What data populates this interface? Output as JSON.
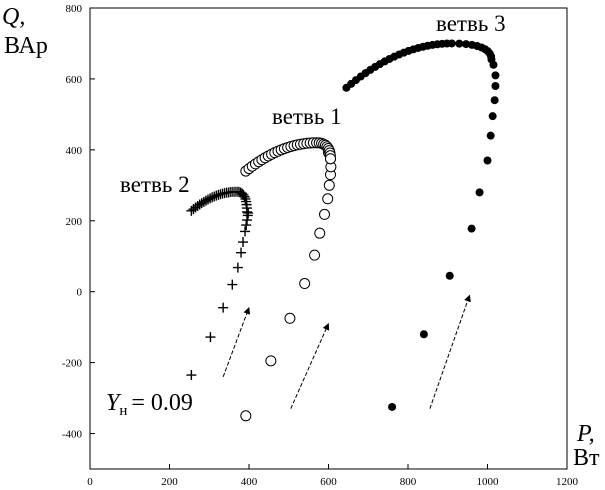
{
  "chart_data": {
    "type": "scatter",
    "xlabel": {
      "symbol": "P,",
      "unit": "Вт"
    },
    "ylabel": {
      "symbol": "Q,",
      "unit": "ВАр"
    },
    "xlim": [
      0,
      1200
    ],
    "ylim": [
      -500,
      800
    ],
    "xticks": [
      0,
      200,
      400,
      600,
      800,
      1000,
      1200
    ],
    "yticks": [
      -400,
      -200,
      0,
      200,
      400,
      600,
      800
    ],
    "grid": false,
    "annotation": {
      "symbol": "Y",
      "subscript": "н",
      "value": "= 0.09"
    },
    "series": [
      {
        "name": "ветвь 2",
        "marker": "plus",
        "sparse": [
          [
            255,
            -235
          ],
          [
            303,
            -128
          ],
          [
            335,
            -45
          ],
          [
            358,
            20
          ],
          [
            372,
            68
          ],
          [
            380,
            110
          ],
          [
            385,
            140
          ]
        ],
        "dense_points": [
          [
            390,
            170
          ],
          [
            393,
            188
          ],
          [
            395,
            202
          ],
          [
            397,
            215
          ],
          [
            398,
            222
          ]
        ],
        "curve": {
          "from": [
            255,
            228
          ],
          "peak": [
            370,
            282
          ],
          "to": [
            395,
            225
          ]
        }
      },
      {
        "name": "ветвь 1",
        "marker": "circle-open",
        "sparse": [
          [
            392,
            -350
          ],
          [
            455,
            -195
          ],
          [
            503,
            -75
          ],
          [
            540,
            23
          ],
          [
            565,
            103
          ],
          [
            578,
            165
          ],
          [
            590,
            218
          ],
          [
            598,
            262
          ],
          [
            602,
            300
          ]
        ],
        "dense_points": [
          [
            605,
            330
          ],
          [
            606,
            352
          ],
          [
            605,
            375
          ],
          [
            600,
            392
          ]
        ],
        "curve": {
          "from": [
            392,
            340
          ],
          "peak": [
            570,
            420
          ],
          "to": [
            605,
            375
          ]
        }
      },
      {
        "name": "ветвь 3",
        "marker": "circle-filled",
        "sparse": [
          [
            760,
            -325
          ],
          [
            840,
            -120
          ],
          [
            905,
            45
          ],
          [
            960,
            178
          ],
          [
            980,
            280
          ],
          [
            1000,
            370
          ],
          [
            1008,
            440
          ],
          [
            1013,
            495
          ],
          [
            1018,
            540
          ],
          [
            1020,
            580
          ]
        ],
        "dense_points": [
          [
            1020,
            610
          ],
          [
            1015,
            640
          ]
        ],
        "curve": {
          "from": [
            645,
            575
          ],
          "peak": [
            910,
            700
          ],
          "to": [
            1010,
            655
          ]
        }
      }
    ],
    "arrows": [
      {
        "from": [
          335,
          -240
        ],
        "to": [
          400,
          -45
        ]
      },
      {
        "from": [
          505,
          -330
        ],
        "to": [
          600,
          -90
        ]
      },
      {
        "from": [
          855,
          -330
        ],
        "to": [
          955,
          -10
        ]
      }
    ]
  }
}
